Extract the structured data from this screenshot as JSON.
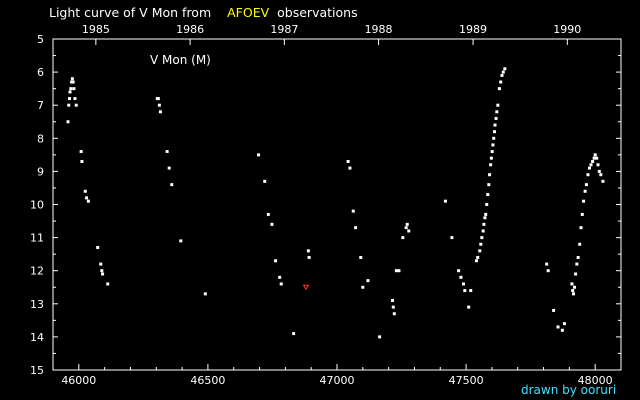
{
  "title": {
    "prefix": "Light curve of V Mon from",
    "source": "AFOEV",
    "suffix": "observations",
    "source_color": "#ffff00"
  },
  "credit": "drawn by ooruri",
  "credit_color": "#40e0ff",
  "chart_data": {
    "type": "scatter",
    "star_label": "V Mon (M)",
    "xlim": [
      45900,
      48100
    ],
    "ylim": [
      5,
      15
    ],
    "y_inverted": true,
    "grid": false,
    "x_ticks": [
      46000,
      46500,
      47000,
      47500,
      48000
    ],
    "y_ticks": [
      5,
      6,
      7,
      8,
      9,
      10,
      11,
      12,
      13,
      14,
      15
    ],
    "year_ticks": [
      {
        "label": "1985",
        "jd": 46066
      },
      {
        "label": "1986",
        "jd": 46431
      },
      {
        "label": "1987",
        "jd": 46796
      },
      {
        "label": "1988",
        "jd": 47161
      },
      {
        "label": "1989",
        "jd": 47527
      },
      {
        "label": "1990",
        "jd": 47892
      }
    ],
    "point_color": "#ffffff",
    "special_color": "#ff3030",
    "series": [
      {
        "values": [
          [
            45958,
            7.5
          ],
          [
            45961,
            7.0
          ],
          [
            45964,
            6.8
          ],
          [
            45966,
            6.6
          ],
          [
            45969,
            6.5
          ],
          [
            45972,
            6.3
          ],
          [
            45975,
            6.2
          ],
          [
            45978,
            6.3
          ],
          [
            45981,
            6.5
          ],
          [
            45985,
            6.8
          ],
          [
            45990,
            7.0
          ],
          [
            46009,
            8.4
          ],
          [
            46012,
            8.7
          ],
          [
            46025,
            9.6
          ],
          [
            46030,
            9.8
          ],
          [
            46037,
            9.9
          ],
          [
            46073,
            11.3
          ],
          [
            46085,
            11.8
          ],
          [
            46089,
            12.0
          ],
          [
            46092,
            12.1
          ],
          [
            46112,
            12.4
          ],
          [
            46304,
            6.8
          ],
          [
            46308,
            6.8
          ],
          [
            46312,
            7.0
          ],
          [
            46316,
            7.2
          ],
          [
            46342,
            8.4
          ],
          [
            46350,
            8.9
          ],
          [
            46360,
            9.4
          ],
          [
            46395,
            11.1
          ],
          [
            46490,
            12.7
          ],
          [
            46696,
            8.5
          ],
          [
            46720,
            9.3
          ],
          [
            46734,
            10.3
          ],
          [
            46748,
            10.6
          ],
          [
            46762,
            11.7
          ],
          [
            46778,
            12.2
          ],
          [
            46784,
            12.4
          ],
          [
            46832,
            13.9
          ],
          [
            46889,
            11.4
          ],
          [
            46892,
            11.6
          ],
          [
            47043,
            8.7
          ],
          [
            47050,
            8.9
          ],
          [
            47063,
            10.2
          ],
          [
            47072,
            10.7
          ],
          [
            47092,
            11.6
          ],
          [
            47100,
            12.5
          ],
          [
            47120,
            12.3
          ],
          [
            47165,
            14.0
          ],
          [
            47215,
            12.9
          ],
          [
            47218,
            13.1
          ],
          [
            47222,
            13.3
          ],
          [
            47230,
            12.0
          ],
          [
            47240,
            12.0
          ],
          [
            47255,
            11.0
          ],
          [
            47268,
            10.7
          ],
          [
            47272,
            10.6
          ],
          [
            47278,
            10.8
          ],
          [
            47420,
            9.9
          ],
          [
            47445,
            11.0
          ],
          [
            47471,
            12.0
          ],
          [
            47480,
            12.2
          ],
          [
            47490,
            12.4
          ],
          [
            47495,
            12.6
          ],
          [
            47510,
            13.1
          ],
          [
            47518,
            12.6
          ],
          [
            47540,
            11.7
          ],
          [
            47545,
            11.6
          ],
          [
            47553,
            11.4
          ],
          [
            47557,
            11.2
          ],
          [
            47561,
            11.0
          ],
          [
            47566,
            10.8
          ],
          [
            47569,
            10.6
          ],
          [
            47573,
            10.4
          ],
          [
            47576,
            10.3
          ],
          [
            47580,
            10.0
          ],
          [
            47584,
            9.7
          ],
          [
            47588,
            9.4
          ],
          [
            47591,
            9.1
          ],
          [
            47595,
            8.8
          ],
          [
            47598,
            8.6
          ],
          [
            47601,
            8.4
          ],
          [
            47604,
            8.2
          ],
          [
            47607,
            8.0
          ],
          [
            47610,
            7.8
          ],
          [
            47612,
            7.6
          ],
          [
            47616,
            7.4
          ],
          [
            47619,
            7.2
          ],
          [
            47623,
            7.0
          ],
          [
            47629,
            6.5
          ],
          [
            47634,
            6.3
          ],
          [
            47639,
            6.1
          ],
          [
            47644,
            6.0
          ],
          [
            47650,
            5.9
          ],
          [
            47812,
            11.8
          ],
          [
            47818,
            12.0
          ],
          [
            47839,
            13.2
          ],
          [
            47856,
            13.7
          ],
          [
            47873,
            13.8
          ],
          [
            47881,
            13.6
          ],
          [
            47910,
            12.4
          ],
          [
            47913,
            12.6
          ],
          [
            47916,
            12.7
          ],
          [
            47920,
            12.5
          ],
          [
            47924,
            12.1
          ],
          [
            47929,
            11.8
          ],
          [
            47934,
            11.6
          ],
          [
            47940,
            11.2
          ],
          [
            47945,
            10.7
          ],
          [
            47950,
            10.3
          ],
          [
            47955,
            9.9
          ],
          [
            47961,
            9.6
          ],
          [
            47966,
            9.4
          ],
          [
            47972,
            9.1
          ],
          [
            47978,
            8.9
          ],
          [
            47984,
            8.8
          ],
          [
            47990,
            8.7
          ],
          [
            47996,
            8.6
          ],
          [
            48000,
            8.5
          ],
          [
            48006,
            8.6
          ],
          [
            48011,
            8.8
          ],
          [
            48016,
            9.0
          ],
          [
            48022,
            9.1
          ],
          [
            48030,
            9.3
          ]
        ]
      },
      {
        "values": [
          [
            46880,
            12.5
          ]
        ],
        "marker": "v"
      }
    ]
  }
}
